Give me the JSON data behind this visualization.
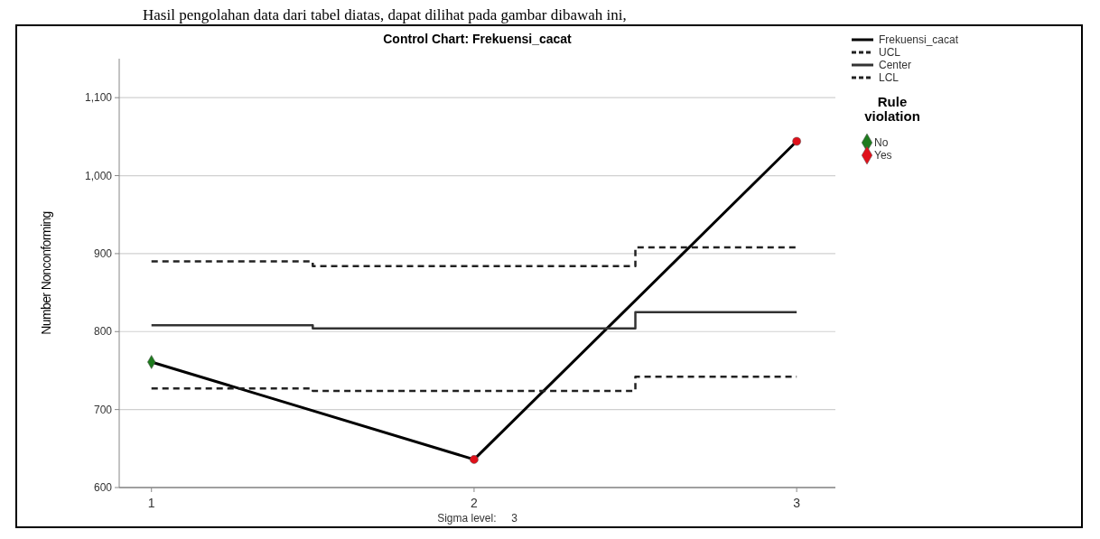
{
  "chart_data": {
    "type": "line",
    "title": "Control Chart: Frekuensi_cacat",
    "ylabel": "Number Nonconforming",
    "annotations": [
      "Hasil pengolahan data dari tabel diatas, dapat dilihat pada gambar dibawah ini,",
      "Sigma level:     3"
    ],
    "xlim": [
      0.9,
      3.12
    ],
    "xticks": [
      1,
      2,
      3
    ],
    "ylim": [
      600,
      1150
    ],
    "yticks": [
      600,
      700,
      800,
      900,
      {
        "value": 1000,
        "label": "1,000"
      },
      {
        "value": 1100,
        "label": "1,100"
      }
    ],
    "grid": "y",
    "legend": "top right",
    "legend_title": "Rule violation",
    "series": [
      {
        "name": "Frekuensi_cacat",
        "color": "#000000",
        "x": [
          1,
          2,
          3
        ],
        "values": [
          761,
          636,
          1044
        ],
        "line_style": "solid"
      },
      {
        "name": "UCL",
        "type": "step",
        "color": "#222222",
        "x": [
          1,
          1.5,
          2.5,
          3
        ],
        "values": [
          890,
          884,
          908,
          908
        ],
        "line_style": "dashed"
      },
      {
        "name": "Center",
        "type": "step",
        "color": "#333333",
        "x": [
          1,
          1.5,
          2.5,
          3
        ],
        "values": [
          808,
          804,
          825,
          825
        ],
        "line_style": "solid"
      },
      {
        "name": "LCL",
        "type": "step",
        "color": "#222222",
        "x": [
          1,
          1.5,
          2.5,
          3
        ],
        "values": [
          727,
          724,
          742,
          742
        ],
        "line_style": "dashed"
      },
      {
        "name": "No",
        "type": "scatter",
        "color": "#1e7b1e",
        "x": [
          1
        ],
        "values": [
          761
        ],
        "marker": "diamond"
      },
      {
        "name": "Yes",
        "type": "scatter",
        "color": "#e0101a",
        "x": [
          2,
          3
        ],
        "values": [
          636,
          1044
        ],
        "marker": "circle"
      }
    ]
  }
}
